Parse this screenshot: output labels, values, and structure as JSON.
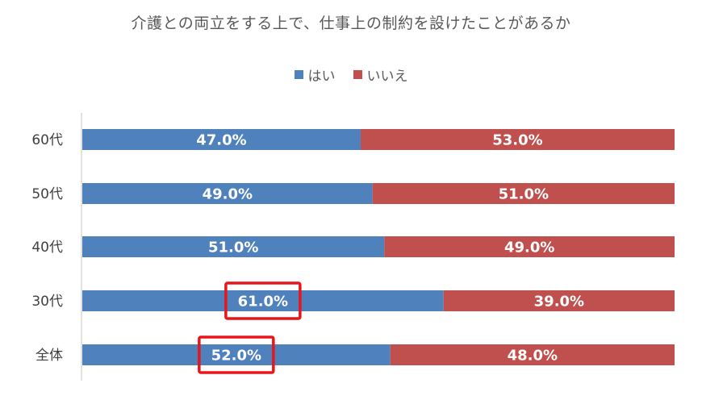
{
  "chart_data": {
    "type": "bar",
    "orientation": "horizontal",
    "stacked": true,
    "percent_stacked": true,
    "title": "介護との両立をする上で、仕事上の制約を設けたことがあるか",
    "categories": [
      "60代",
      "50代",
      "40代",
      "30代",
      "全体"
    ],
    "series": [
      {
        "name": "はい",
        "color": "#4F81BD",
        "values": [
          47.0,
          49.0,
          51.0,
          61.0,
          52.0
        ],
        "labels": [
          "47.0%",
          "49.0%",
          "51.0%",
          "61.0%",
          "52.0%"
        ]
      },
      {
        "name": "いいえ",
        "color": "#C0504D",
        "values": [
          53.0,
          51.0,
          49.0,
          39.0,
          48.0
        ],
        "labels": [
          "53.0%",
          "51.0%",
          "49.0%",
          "39.0%",
          "48.0%"
        ]
      }
    ],
    "xlim": [
      0,
      100
    ],
    "legend_position": "top",
    "grid": false,
    "highlighted_labels": [
      {
        "category": "30代",
        "series": "はい",
        "color": "#E8151B"
      },
      {
        "category": "全体",
        "series": "はい",
        "color": "#E8151B"
      }
    ]
  }
}
